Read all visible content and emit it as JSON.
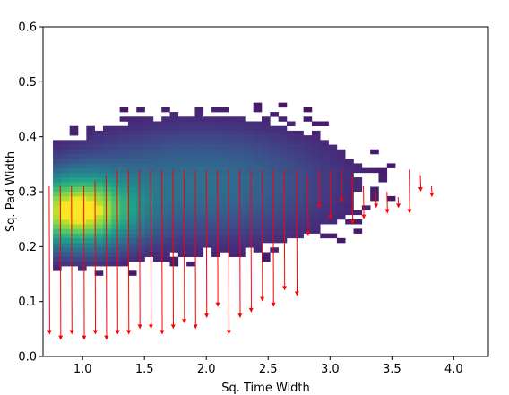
{
  "chart_data": {
    "type": "heatmap",
    "title": "",
    "xlabel": "Sq. Time Width",
    "ylabel": "Sq. Pad Width",
    "xlim": [
      0.68,
      4.28
    ],
    "ylim": [
      0.0,
      0.6
    ],
    "x_ticks": [
      1.0,
      1.5,
      2.0,
      2.5,
      3.0,
      3.5,
      4.0
    ],
    "x_tick_labels": [
      "1.0",
      "1.5",
      "2.0",
      "2.5",
      "3.0",
      "3.5",
      "4.0"
    ],
    "y_ticks": [
      0.0,
      0.1,
      0.2,
      0.3,
      0.4,
      0.5,
      0.6
    ],
    "y_tick_labels": [
      "0.0",
      "0.1",
      "0.2",
      "0.3",
      "0.4",
      "0.5",
      "0.6"
    ],
    "colormap": "viridis",
    "density_peak": {
      "x": 0.92,
      "y": 0.26
    },
    "grid": false,
    "arrow_color": "#ff0000",
    "arrows": [
      {
        "x": 0.73,
        "y0": 0.31,
        "y1": 0.04
      },
      {
        "x": 0.82,
        "y0": 0.31,
        "y1": 0.03
      },
      {
        "x": 0.91,
        "y0": 0.31,
        "y1": 0.04
      },
      {
        "x": 1.01,
        "y0": 0.31,
        "y1": 0.03
      },
      {
        "x": 1.1,
        "y0": 0.32,
        "y1": 0.04
      },
      {
        "x": 1.19,
        "y0": 0.33,
        "y1": 0.03
      },
      {
        "x": 1.28,
        "y0": 0.34,
        "y1": 0.04
      },
      {
        "x": 1.37,
        "y0": 0.34,
        "y1": 0.04
      },
      {
        "x": 1.46,
        "y0": 0.34,
        "y1": 0.05
      },
      {
        "x": 1.55,
        "y0": 0.34,
        "y1": 0.05
      },
      {
        "x": 1.64,
        "y0": 0.34,
        "y1": 0.04
      },
      {
        "x": 1.73,
        "y0": 0.34,
        "y1": 0.05
      },
      {
        "x": 1.82,
        "y0": 0.34,
        "y1": 0.06
      },
      {
        "x": 1.91,
        "y0": 0.34,
        "y1": 0.05
      },
      {
        "x": 2.0,
        "y0": 0.34,
        "y1": 0.07
      },
      {
        "x": 2.09,
        "y0": 0.34,
        "y1": 0.09
      },
      {
        "x": 2.18,
        "y0": 0.34,
        "y1": 0.04
      },
      {
        "x": 2.27,
        "y0": 0.34,
        "y1": 0.07
      },
      {
        "x": 2.36,
        "y0": 0.34,
        "y1": 0.08
      },
      {
        "x": 2.45,
        "y0": 0.34,
        "y1": 0.1
      },
      {
        "x": 2.54,
        "y0": 0.34,
        "y1": 0.09
      },
      {
        "x": 2.63,
        "y0": 0.34,
        "y1": 0.12
      },
      {
        "x": 2.73,
        "y0": 0.34,
        "y1": 0.11
      },
      {
        "x": 2.82,
        "y0": 0.33,
        "y1": 0.22
      },
      {
        "x": 2.91,
        "y0": 0.34,
        "y1": 0.27
      },
      {
        "x": 3.0,
        "y0": 0.34,
        "y1": 0.25
      },
      {
        "x": 3.09,
        "y0": 0.34,
        "y1": 0.28
      },
      {
        "x": 3.18,
        "y0": 0.33,
        "y1": 0.24
      },
      {
        "x": 3.27,
        "y0": 0.31,
        "y1": 0.25
      },
      {
        "x": 3.37,
        "y0": 0.3,
        "y1": 0.27
      },
      {
        "x": 3.46,
        "y0": 0.3,
        "y1": 0.26
      },
      {
        "x": 3.55,
        "y0": 0.29,
        "y1": 0.27
      },
      {
        "x": 3.64,
        "y0": 0.34,
        "y1": 0.26
      },
      {
        "x": 3.73,
        "y0": 0.33,
        "y1": 0.3
      },
      {
        "x": 3.82,
        "y0": 0.31,
        "y1": 0.29
      }
    ]
  }
}
